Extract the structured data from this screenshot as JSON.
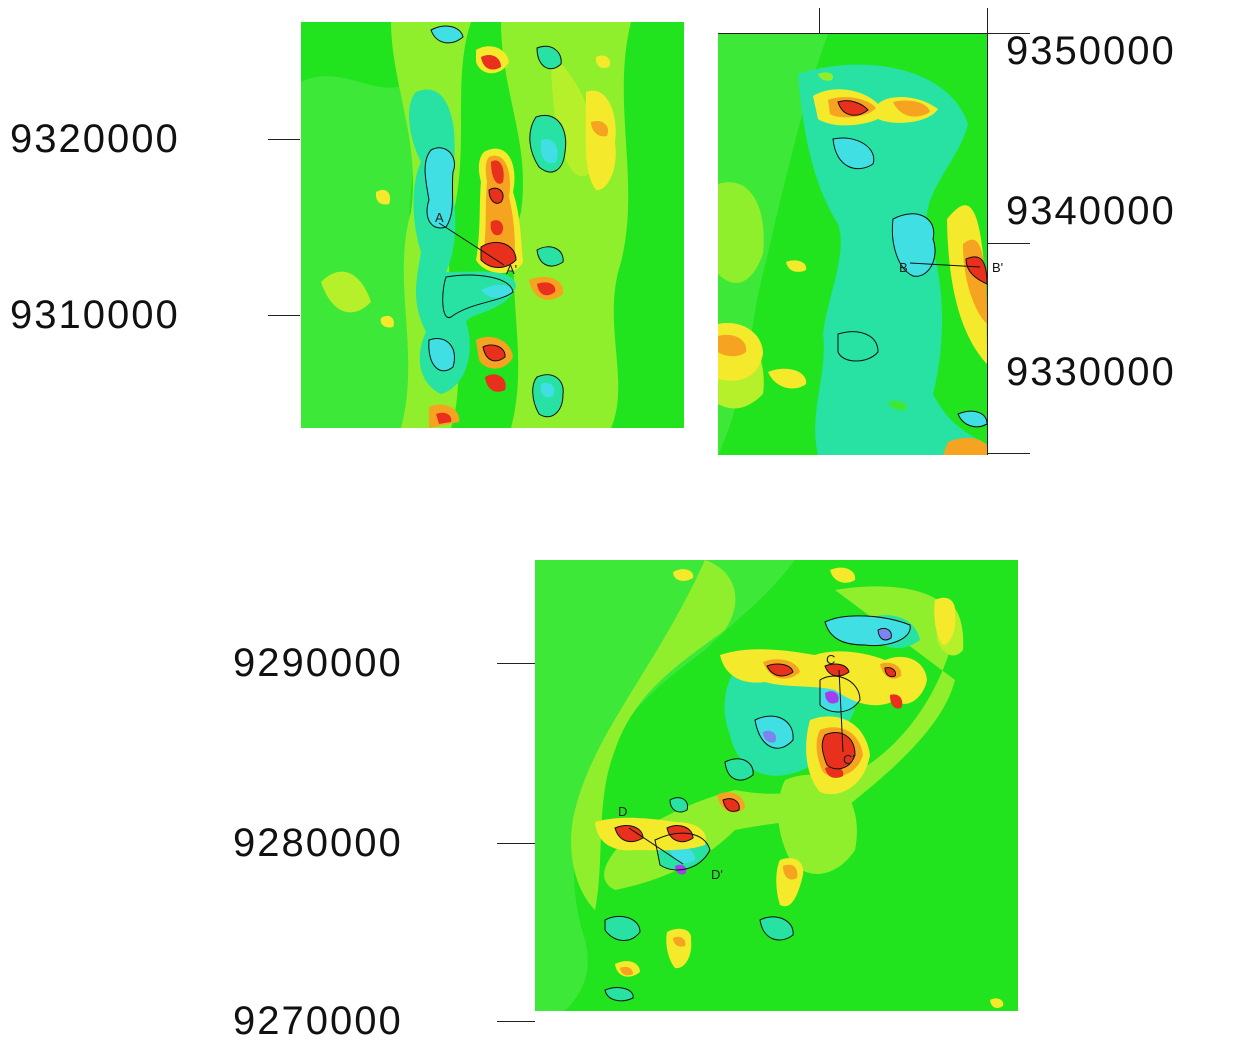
{
  "panels": [
    {
      "id": "map-1",
      "northing_labels": [
        "9320000",
        "9310000"
      ],
      "profile": {
        "start": "A",
        "end": "A'"
      }
    },
    {
      "id": "map-2",
      "northing_labels": [
        "9350000",
        "9340000",
        "9330000"
      ],
      "profile": {
        "start": "B",
        "end": "B'"
      }
    },
    {
      "id": "map-3",
      "northing_labels": [
        "9290000",
        "9280000",
        "9270000"
      ],
      "profiles": [
        {
          "start": "C",
          "end": "C'"
        },
        {
          "start": "D",
          "end": "D'"
        }
      ]
    }
  ],
  "palette": {
    "background": "#22e41e",
    "band_low": "#3ee838",
    "band_mid_low": "#8fef2c",
    "band_mid": "#b6f02a",
    "yellow": "#f4ea2b",
    "orange": "#f6a321",
    "red": "#e8301c",
    "teal": "#27e2a2",
    "cyan": "#40dfe4",
    "blue": "#7c84ee",
    "purple": "#a23ff0"
  }
}
